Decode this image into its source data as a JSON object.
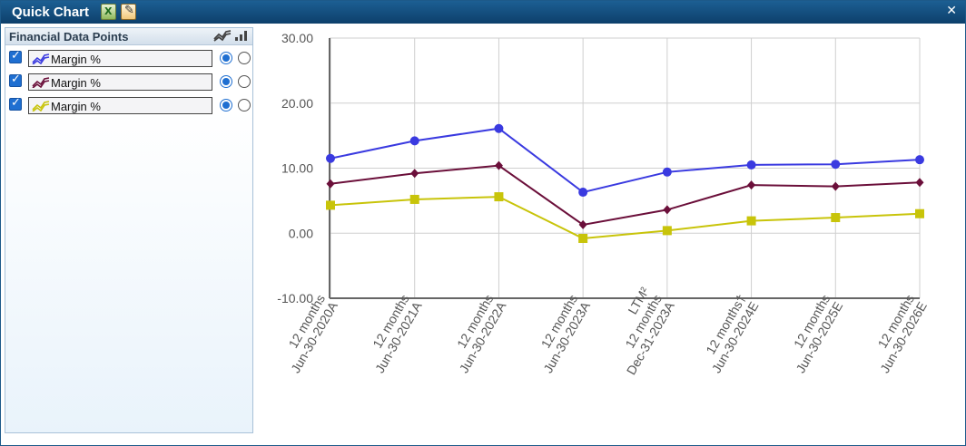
{
  "window": {
    "title": "Quick Chart",
    "close_glyph": "✕"
  },
  "toolbar_icons": [
    "excel-export-icon",
    "edit-chart-icon"
  ],
  "panel": {
    "title": "Financial Data Points",
    "series": [
      {
        "label": "Margin %",
        "color": "#3a3ae0",
        "checked": true,
        "axis": "left"
      },
      {
        "label": "Margin %",
        "color": "#6b0f3a",
        "checked": true,
        "axis": "left"
      },
      {
        "label": "Margin %",
        "color": "#c8c40a",
        "checked": true,
        "axis": "left"
      }
    ]
  },
  "chart_data": {
    "type": "line",
    "categories": [
      [
        "12 months",
        "Jun-30-2020A"
      ],
      [
        "12 months",
        "Jun-30-2021A"
      ],
      [
        "12 months",
        "Jun-30-2022A"
      ],
      [
        "12 months",
        "Jun-30-2023A"
      ],
      [
        "LTM²",
        "12 months",
        "Dec-31-2023A"
      ],
      [
        "12 months†",
        "Jun-30-2024E"
      ],
      [
        "12 months",
        "Jun-30-2025E"
      ],
      [
        "12 months",
        "Jun-30-2026E"
      ]
    ],
    "series": [
      {
        "name": "Margin %",
        "color": "#3a3ae0",
        "marker": "circle",
        "values": [
          11.5,
          14.2,
          16.1,
          6.3,
          9.4,
          10.5,
          10.6,
          11.3
        ]
      },
      {
        "name": "Margin %",
        "color": "#6b0f3a",
        "marker": "diamond",
        "values": [
          7.6,
          9.2,
          10.4,
          1.3,
          3.6,
          7.4,
          7.2,
          7.8
        ]
      },
      {
        "name": "Margin %",
        "color": "#c8c40a",
        "marker": "square",
        "values": [
          4.3,
          5.2,
          5.6,
          -0.8,
          0.4,
          1.9,
          2.4,
          3.0
        ]
      }
    ],
    "ylim": [
      -10,
      30
    ],
    "yticks": [
      "30.00",
      "20.00",
      "10.00",
      "0.00",
      "-10.00"
    ],
    "ytick_values": [
      30,
      20,
      10,
      0,
      -10
    ],
    "grid": true
  }
}
